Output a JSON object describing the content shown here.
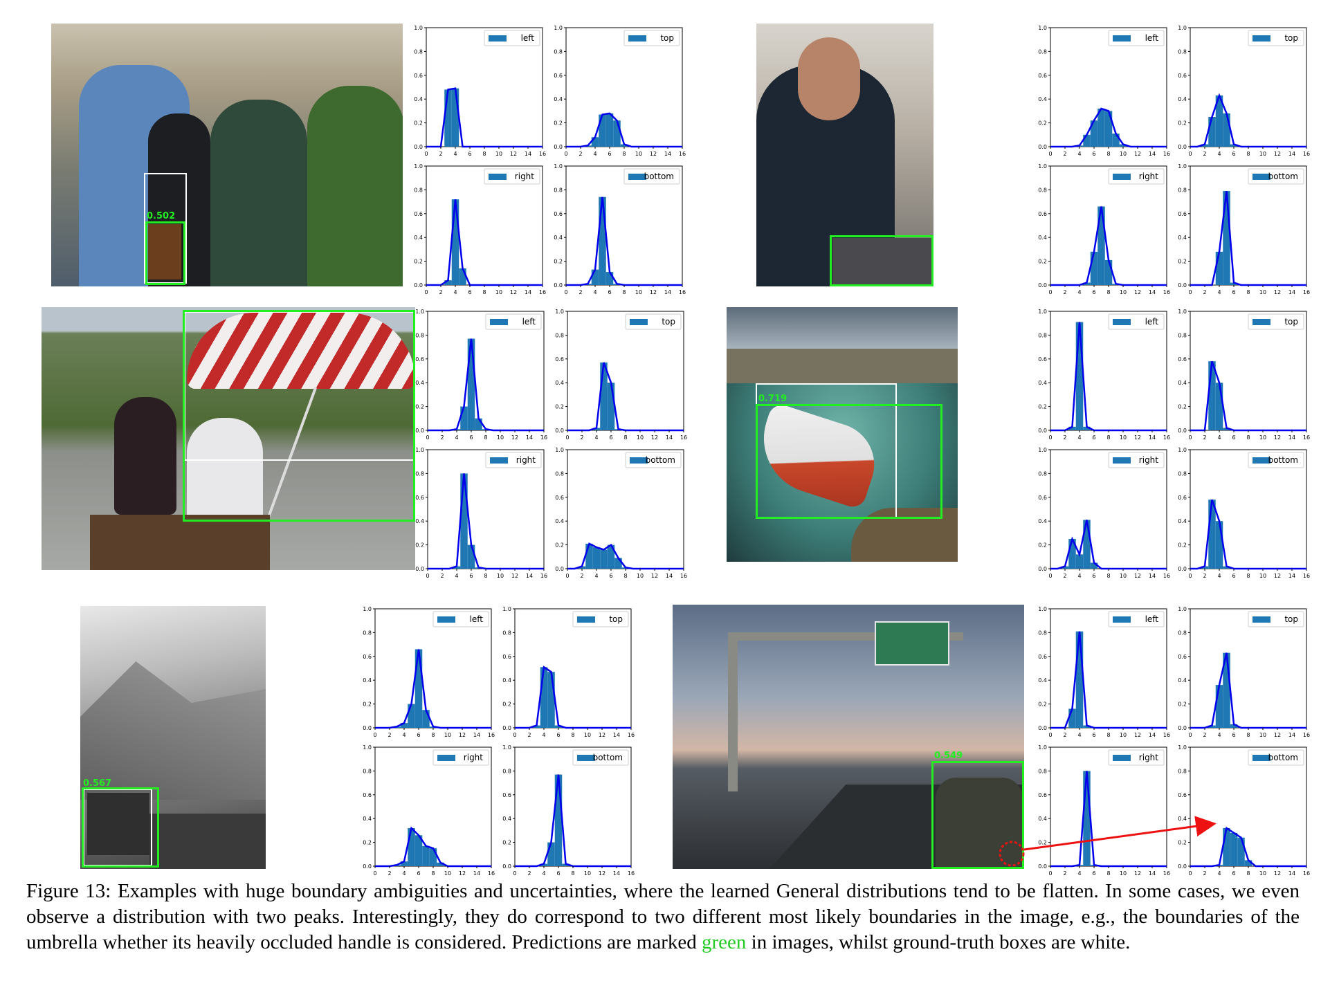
{
  "caption": {
    "label": "Figure 13:",
    "text_before_green": "Examples with huge boundary ambiguities and uncertainties, where the learned General distributions tend to be flatten. In some cases, we even observe a distribution with two peaks. Interestingly, they do correspond to two different most likely boundaries in the image, e.g., the boundaries of the umbrella whether its heavily occluded handle is considered. Predictions are marked",
    "green_word": "green",
    "text_after_green": "in images, whilst ground-truth boxes are white."
  },
  "colors": {
    "bar": "#1f77b4",
    "line": "#0000ee",
    "prediction": "#22ee22",
    "ground_truth": "#ffffff",
    "arrow": "#ee1111"
  },
  "examples": [
    {
      "id": "bus-passengers",
      "score": "0.502"
    },
    {
      "id": "man-laptop",
      "score": ""
    },
    {
      "id": "umbrella",
      "score": ""
    },
    {
      "id": "boat",
      "score": "0.719"
    },
    {
      "id": "mountain-vehicle",
      "score": "0.567"
    },
    {
      "id": "highway-car",
      "score": "0.549"
    }
  ],
  "chart_data": {
    "type": "bar",
    "x": [
      0,
      1,
      2,
      3,
      4,
      5,
      6,
      7,
      8,
      9,
      10,
      11,
      12,
      13,
      14,
      15,
      16
    ],
    "xticks": [
      "0",
      "2",
      "4",
      "6",
      "8",
      "10",
      "12",
      "14",
      "16"
    ],
    "yticks": [
      "0.0",
      "0.2",
      "0.4",
      "0.6",
      "0.8",
      "1.0"
    ],
    "ylim": [
      0,
      1.0
    ],
    "xlim": [
      0,
      16
    ],
    "legend_position": "upper right",
    "grids": [
      {
        "name": "bus-passengers",
        "charts": [
          {
            "label": "left",
            "values": [
              0,
              0,
              0,
              0.48,
              0.49,
              0,
              0,
              0,
              0,
              0,
              0,
              0,
              0,
              0,
              0,
              0,
              0
            ]
          },
          {
            "label": "top",
            "values": [
              0,
              0,
              0,
              0.01,
              0.08,
              0.27,
              0.28,
              0.22,
              0.02,
              0,
              0,
              0,
              0,
              0,
              0,
              0,
              0
            ]
          },
          {
            "label": "right",
            "values": [
              0,
              0,
              0,
              0.04,
              0.72,
              0.14,
              0,
              0,
              0,
              0,
              0,
              0,
              0,
              0,
              0,
              0,
              0
            ]
          },
          {
            "label": "bottom",
            "values": [
              0,
              0,
              0,
              0.01,
              0.13,
              0.74,
              0.11,
              0.01,
              0,
              0,
              0,
              0,
              0,
              0,
              0,
              0,
              0
            ]
          }
        ]
      },
      {
        "name": "man-laptop",
        "charts": [
          {
            "label": "left",
            "values": [
              0,
              0,
              0,
              0,
              0.01,
              0.1,
              0.22,
              0.32,
              0.3,
              0.11,
              0.02,
              0,
              0,
              0,
              0,
              0,
              0
            ]
          },
          {
            "label": "top",
            "values": [
              0,
              0,
              0.02,
              0.25,
              0.43,
              0.28,
              0.02,
              0,
              0,
              0,
              0,
              0,
              0,
              0,
              0,
              0,
              0
            ]
          },
          {
            "label": "right",
            "values": [
              0,
              0,
              0,
              0,
              0,
              0.02,
              0.28,
              0.66,
              0.21,
              0.01,
              0,
              0,
              0,
              0,
              0,
              0,
              0
            ]
          },
          {
            "label": "bottom",
            "values": [
              0,
              0,
              0,
              0,
              0.28,
              0.79,
              0.02,
              0,
              0,
              0,
              0,
              0,
              0,
              0,
              0,
              0,
              0
            ]
          }
        ]
      },
      {
        "name": "umbrella",
        "charts": [
          {
            "label": "left",
            "values": [
              0,
              0,
              0,
              0,
              0.01,
              0.2,
              0.77,
              0.1,
              0.01,
              0,
              0,
              0,
              0,
              0,
              0,
              0,
              0
            ]
          },
          {
            "label": "top",
            "values": [
              0,
              0,
              0,
              0,
              0.02,
              0.57,
              0.4,
              0.01,
              0,
              0,
              0,
              0,
              0,
              0,
              0,
              0,
              0
            ]
          },
          {
            "label": "right",
            "values": [
              0,
              0,
              0,
              0,
              0.02,
              0.8,
              0.2,
              0.01,
              0,
              0,
              0,
              0,
              0,
              0,
              0,
              0,
              0
            ]
          },
          {
            "label": "bottom",
            "values": [
              0,
              0,
              0.02,
              0.21,
              0.18,
              0.16,
              0.2,
              0.09,
              0.01,
              0,
              0,
              0,
              0,
              0,
              0,
              0,
              0
            ]
          }
        ]
      },
      {
        "name": "boat",
        "charts": [
          {
            "label": "left",
            "values": [
              0,
              0,
              0,
              0.03,
              0.91,
              0.03,
              0,
              0,
              0,
              0,
              0,
              0,
              0,
              0,
              0,
              0,
              0
            ]
          },
          {
            "label": "top",
            "values": [
              0,
              0,
              0,
              0.58,
              0.4,
              0.02,
              0,
              0,
              0,
              0,
              0,
              0,
              0,
              0,
              0,
              0,
              0
            ]
          },
          {
            "label": "right",
            "values": [
              0,
              0,
              0.02,
              0.25,
              0.12,
              0.41,
              0.05,
              0,
              0,
              0,
              0,
              0,
              0,
              0,
              0,
              0,
              0
            ]
          },
          {
            "label": "bottom",
            "values": [
              0,
              0,
              0.02,
              0.58,
              0.4,
              0.02,
              0,
              0,
              0,
              0,
              0,
              0,
              0,
              0,
              0,
              0,
              0
            ]
          }
        ]
      },
      {
        "name": "mountain-vehicle",
        "charts": [
          {
            "label": "left",
            "values": [
              0,
              0,
              0,
              0.01,
              0.04,
              0.2,
              0.66,
              0.15,
              0.01,
              0,
              0,
              0,
              0,
              0,
              0,
              0,
              0
            ]
          },
          {
            "label": "top",
            "values": [
              0,
              0,
              0,
              0.02,
              0.51,
              0.47,
              0.02,
              0,
              0,
              0,
              0,
              0,
              0,
              0,
              0,
              0,
              0
            ]
          },
          {
            "label": "right",
            "values": [
              0,
              0,
              0,
              0.01,
              0.04,
              0.32,
              0.26,
              0.17,
              0.15,
              0.03,
              0,
              0,
              0,
              0,
              0,
              0,
              0
            ]
          },
          {
            "label": "bottom",
            "values": [
              0,
              0,
              0,
              0,
              0.02,
              0.2,
              0.77,
              0.02,
              0,
              0,
              0,
              0,
              0,
              0,
              0,
              0,
              0
            ]
          }
        ]
      },
      {
        "name": "highway-car",
        "charts": [
          {
            "label": "left",
            "values": [
              0,
              0,
              0,
              0.16,
              0.81,
              0.02,
              0,
              0,
              0,
              0,
              0,
              0,
              0,
              0,
              0,
              0,
              0
            ]
          },
          {
            "label": "top",
            "values": [
              0,
              0,
              0,
              0.02,
              0.36,
              0.63,
              0.03,
              0,
              0,
              0,
              0,
              0,
              0,
              0,
              0,
              0,
              0
            ]
          },
          {
            "label": "right",
            "values": [
              0,
              0,
              0,
              0,
              0.01,
              0.8,
              0.01,
              0,
              0,
              0,
              0,
              0,
              0,
              0,
              0,
              0,
              0
            ]
          },
          {
            "label": "bottom",
            "values": [
              0,
              0,
              0,
              0,
              0.01,
              0.32,
              0.28,
              0.24,
              0.05,
              0,
              0,
              0,
              0,
              0,
              0,
              0,
              0
            ]
          }
        ]
      }
    ]
  }
}
